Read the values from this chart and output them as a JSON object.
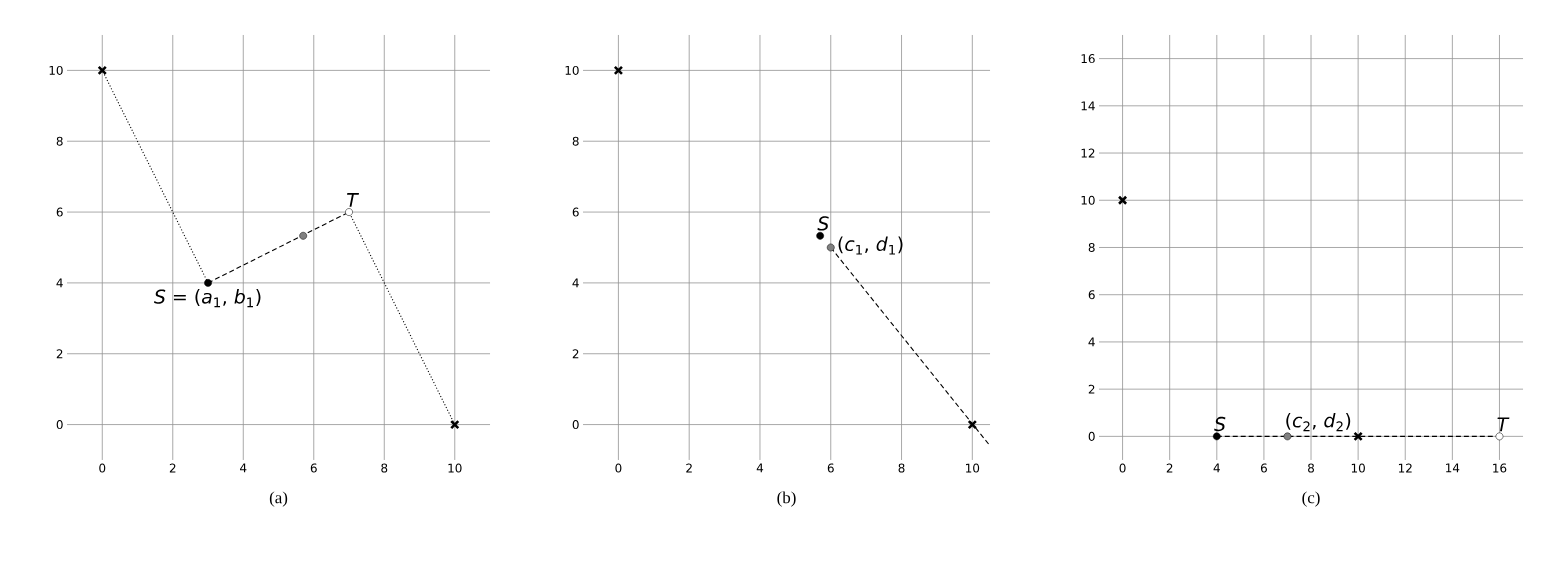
{
  "chart_data": [
    {
      "type": "scatter",
      "xlabel": "(a)",
      "xlim": [
        -1,
        11
      ],
      "ylim": [
        -1,
        11
      ],
      "xticks": [
        0,
        2,
        4,
        6,
        8,
        10
      ],
      "yticks": [
        0,
        2,
        4,
        6,
        8,
        10
      ],
      "grid": true,
      "series": [
        {
          "type": "line",
          "line_style": "dotted",
          "marker": "none",
          "color": "#000000",
          "x": [
            3,
            0
          ],
          "values": [
            4,
            10
          ]
        },
        {
          "type": "line",
          "line_style": "dotted",
          "marker": "none",
          "color": "#000000",
          "x": [
            10,
            7
          ],
          "values": [
            0,
            6
          ]
        },
        {
          "type": "line",
          "line_style": "dashed",
          "marker": "none",
          "color": "#000000",
          "x": [
            3,
            7
          ],
          "values": [
            4,
            6
          ]
        },
        {
          "marker": "cross",
          "color": "#000000",
          "x": [
            0,
            10
          ],
          "values": [
            10,
            0
          ]
        },
        {
          "marker": "circle",
          "color": "#000000",
          "x": [
            3
          ],
          "values": [
            4
          ]
        },
        {
          "marker": "circle",
          "color": "#808080",
          "x": [
            5.7
          ],
          "values": [
            5.33
          ]
        },
        {
          "marker": "circle",
          "color": "#ffffff",
          "x": [
            7
          ],
          "values": [
            6
          ]
        }
      ],
      "annotations": [
        {
          "text": "*T*",
          "x": 7,
          "y": 6
        },
        {
          "text": "*S* = (*a*$_{1}$, *b*$_{1}$)",
          "x": 3,
          "y": 4
        }
      ]
    },
    {
      "type": "scatter",
      "xlabel": "(b)",
      "xlim": [
        -1,
        10.5
      ],
      "ylim": [
        -1,
        11
      ],
      "xticks": [
        0,
        2,
        4,
        6,
        8,
        10
      ],
      "yticks": [
        0,
        2,
        4,
        6,
        8,
        10
      ],
      "grid": true,
      "series": [
        {
          "type": "line",
          "line_style": "dashed",
          "marker": "none",
          "color": "#000000",
          "x": [
            6,
            10.5
          ],
          "values": [
            5,
            -0.6
          ]
        },
        {
          "marker": "cross",
          "color": "#000000",
          "x": [
            0,
            10
          ],
          "values": [
            10,
            0
          ]
        },
        {
          "marker": "circle",
          "color": "#000000",
          "x": [
            5.7
          ],
          "values": [
            5.33
          ]
        },
        {
          "marker": "circle",
          "color": "#808080",
          "x": [
            6
          ],
          "values": [
            5
          ]
        }
      ],
      "annotations": [
        {
          "text": "*S*",
          "x": 5.7,
          "y": 5.33
        },
        {
          "text": "(*c*$_{1}$, *d*$_{1}$)",
          "x": 6,
          "y": 5
        }
      ]
    },
    {
      "type": "scatter",
      "xlabel": "(c)",
      "xlim": [
        -1,
        17
      ],
      "ylim": [
        -1,
        17
      ],
      "xticks": [
        0,
        2,
        4,
        6,
        8,
        10,
        12,
        14,
        16
      ],
      "yticks": [
        0,
        2,
        4,
        6,
        8,
        10,
        12,
        14,
        16
      ],
      "grid": true,
      "series": [
        {
          "type": "line",
          "line_style": "dashed",
          "marker": "none",
          "color": "#000000",
          "x": [
            4,
            16
          ],
          "values": [
            0,
            0
          ]
        },
        {
          "marker": "cross",
          "color": "#000000",
          "x": [
            0,
            10
          ],
          "values": [
            10,
            0
          ]
        },
        {
          "marker": "circle",
          "color": "#000000",
          "x": [
            4
          ],
          "values": [
            0
          ]
        },
        {
          "marker": "circle",
          "color": "#808080",
          "x": [
            7
          ],
          "values": [
            0
          ]
        },
        {
          "marker": "circle",
          "color": "#ffffff",
          "x": [
            16
          ],
          "values": [
            0
          ]
        }
      ],
      "annotations": [
        {
          "text": "*S*",
          "x": 4,
          "y": 0
        },
        {
          "text": "(*c*$_{2}$, *d*$_{2}$)",
          "x": 7,
          "y": 0
        },
        {
          "text": "*T*",
          "x": 16,
          "y": 0
        }
      ]
    }
  ]
}
